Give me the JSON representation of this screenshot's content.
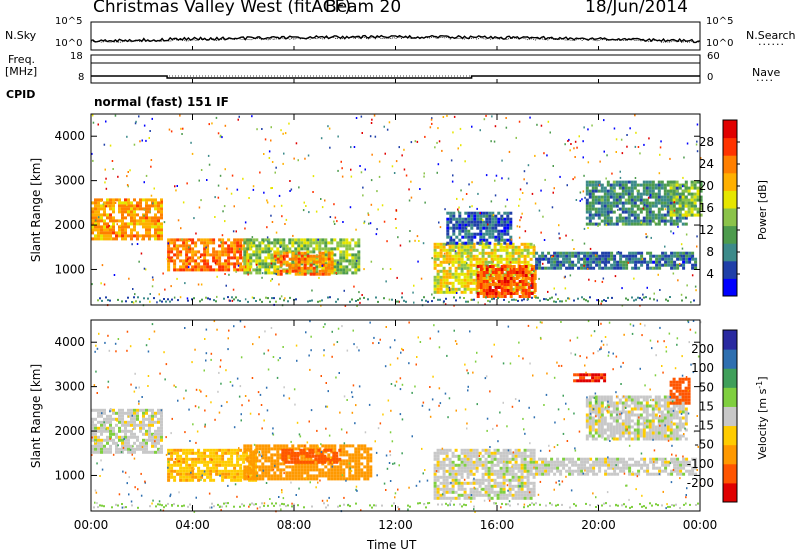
{
  "header": {
    "station": "Christmas Valley West (fitACF)",
    "beam": "Beam 20",
    "date": "18/Jun/2014",
    "cpid_label": "CPID",
    "cpid_value": "normal (fast) 151 IF"
  },
  "chart_data": [
    {
      "type": "line",
      "panel": "noise",
      "series": [
        {
          "name": "N.Sky"
        },
        {
          "name": "N.Search"
        }
      ],
      "left_label": "N.Sky",
      "right_label": "N.Search",
      "left_ticks": [
        "10^5",
        "10^0"
      ],
      "right_ticks": [
        "10^5",
        "10^0"
      ],
      "x_range_hours": [
        0,
        24
      ]
    },
    {
      "type": "line",
      "panel": "frequency",
      "series": [
        {
          "name": "Freq.",
          "segments": [
            {
              "x": [
                0,
                3
              ],
              "y": 10.5
            },
            {
              "x": [
                3,
                15
              ],
              "y": 9.8
            },
            {
              "x": [
                15,
                24
              ],
              "y": 10.5
            }
          ]
        },
        {
          "name": "Nave"
        }
      ],
      "left_label_1": "Freq.",
      "left_label_2": "[MHz]",
      "right_label": "Nave",
      "left_ticks": [
        "18",
        "8"
      ],
      "right_ticks": [
        "60",
        "0"
      ],
      "ylim": [
        8,
        18
      ]
    },
    {
      "type": "heatmap",
      "panel": "power",
      "xlabel": "",
      "ylabel": "Slant Range [km]",
      "x_range_hours": [
        0,
        24
      ],
      "ylim": [
        200,
        4500
      ],
      "yticks": [
        "1000",
        "2000",
        "3000",
        "4000"
      ],
      "colorbar_label": "Power [dB]",
      "colorbar_ticks": [
        "28",
        "24",
        "20",
        "16",
        "12",
        "8",
        "4"
      ],
      "colorbar_colors": [
        "#0000ff",
        "#1f3fa8",
        "#3c8a8a",
        "#4d9b4d",
        "#8bc34a",
        "#e6e600",
        "#ffb000",
        "#ff7f00",
        "#ff3300",
        "#e00000"
      ],
      "colorbar_range": [
        0,
        32
      ],
      "echo_bands": [
        {
          "t0": 0.0,
          "t1": 2.8,
          "r0": 1700,
          "r1": 2600,
          "v": 22
        },
        {
          "t0": 3.0,
          "t1": 6.2,
          "r0": 1000,
          "r1": 1700,
          "v": 24
        },
        {
          "t0": 6.0,
          "t1": 10.5,
          "r0": 900,
          "r1": 1700,
          "v": 14
        },
        {
          "t0": 7.2,
          "t1": 9.5,
          "r0": 900,
          "r1": 1400,
          "v": 24
        },
        {
          "t0": 13.5,
          "t1": 17.5,
          "r0": 500,
          "r1": 1600,
          "v": 18
        },
        {
          "t0": 15.2,
          "t1": 17.5,
          "r0": 400,
          "r1": 1100,
          "v": 26
        },
        {
          "t0": 14.0,
          "t1": 16.5,
          "r0": 1600,
          "r1": 2300,
          "v": 6
        },
        {
          "t0": 17.5,
          "t1": 23.8,
          "r0": 1000,
          "r1": 1400,
          "v": 7
        },
        {
          "t0": 19.5,
          "t1": 23.5,
          "r0": 2000,
          "r1": 3000,
          "v": 9
        },
        {
          "t0": 22.8,
          "t1": 24.0,
          "r0": 2200,
          "r1": 3000,
          "v": 14
        }
      ]
    },
    {
      "type": "heatmap",
      "panel": "velocity",
      "xlabel": "Time UT",
      "ylabel": "Slant Range [km]",
      "x_range_hours": [
        0,
        24
      ],
      "ylim": [
        200,
        4500
      ],
      "yticks": [
        "1000",
        "2000",
        "3000",
        "4000"
      ],
      "xticks": [
        "00:00",
        "04:00",
        "08:00",
        "12:00",
        "16:00",
        "20:00",
        "00:00"
      ],
      "colorbar_label": "Velocity [m s",
      "colorbar_label_sup": "-1",
      "colorbar_label_end": "]",
      "colorbar_ticks": [
        "200",
        "100",
        "50",
        "15",
        "-15",
        "-50",
        "-100",
        "-200"
      ],
      "colorbar_colors": [
        "#2a2aa0",
        "#2e6fb0",
        "#3f9f5a",
        "#7fcf3f",
        "#c8c8c8",
        "#ffcc00",
        "#ff9900",
        "#ff5500",
        "#e00000"
      ],
      "echo_bands": [
        {
          "t0": 0.0,
          "t1": 2.8,
          "r0": 1500,
          "r1": 2500,
          "v": 0
        },
        {
          "t0": 3.0,
          "t1": 6.5,
          "r0": 900,
          "r1": 1600,
          "v": -40
        },
        {
          "t0": 6.0,
          "t1": 11.0,
          "r0": 900,
          "r1": 1700,
          "v": -70
        },
        {
          "t0": 7.5,
          "t1": 9.8,
          "r0": 1300,
          "r1": 1600,
          "v": -150
        },
        {
          "t0": 13.5,
          "t1": 17.5,
          "r0": 500,
          "r1": 1600,
          "v": 0
        },
        {
          "t0": 17.5,
          "t1": 23.8,
          "r0": 1000,
          "r1": 1400,
          "v": 0
        },
        {
          "t0": 19.5,
          "t1": 23.5,
          "r0": 1800,
          "r1": 2800,
          "v": 0
        },
        {
          "t0": 19.0,
          "t1": 20.2,
          "r0": 3100,
          "r1": 3300,
          "v": -200
        },
        {
          "t0": 22.8,
          "t1": 23.6,
          "r0": 2600,
          "r1": 3200,
          "v": -180
        }
      ]
    }
  ]
}
